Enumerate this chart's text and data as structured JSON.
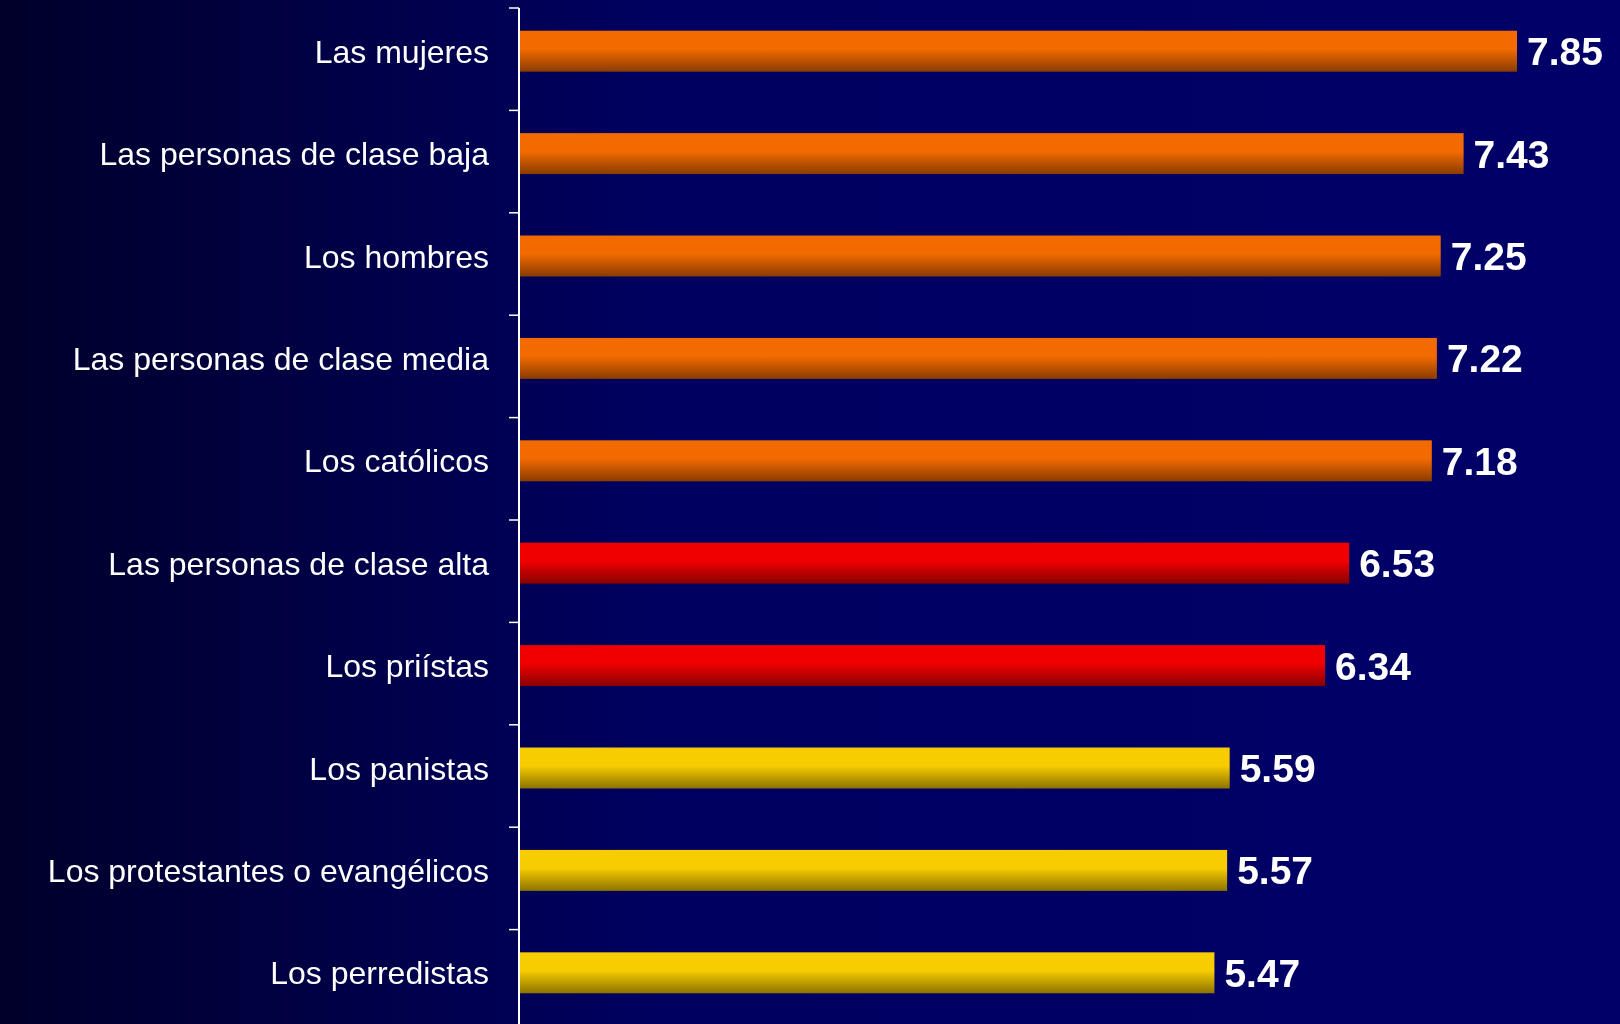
{
  "chart_data": {
    "type": "bar",
    "orientation": "horizontal",
    "categories": [
      "Las mujeres",
      "Las personas de clase baja",
      "Los hombres",
      "Las personas de clase media",
      "Los católicos",
      "Las personas de clase alta",
      "Los priístas",
      "Los panistas",
      "Los protestantes o evangélicos",
      "Los perredistas"
    ],
    "values": [
      7.85,
      7.43,
      7.25,
      7.22,
      7.18,
      6.53,
      6.34,
      5.59,
      5.57,
      5.47
    ],
    "colors": [
      "#f26a00",
      "#f26a00",
      "#f26a00",
      "#f26a00",
      "#f26a00",
      "#f00000",
      "#f00000",
      "#f7cc00",
      "#f7cc00",
      "#f7cc00"
    ],
    "tick_labels": "y",
    "data_labels": true
  }
}
